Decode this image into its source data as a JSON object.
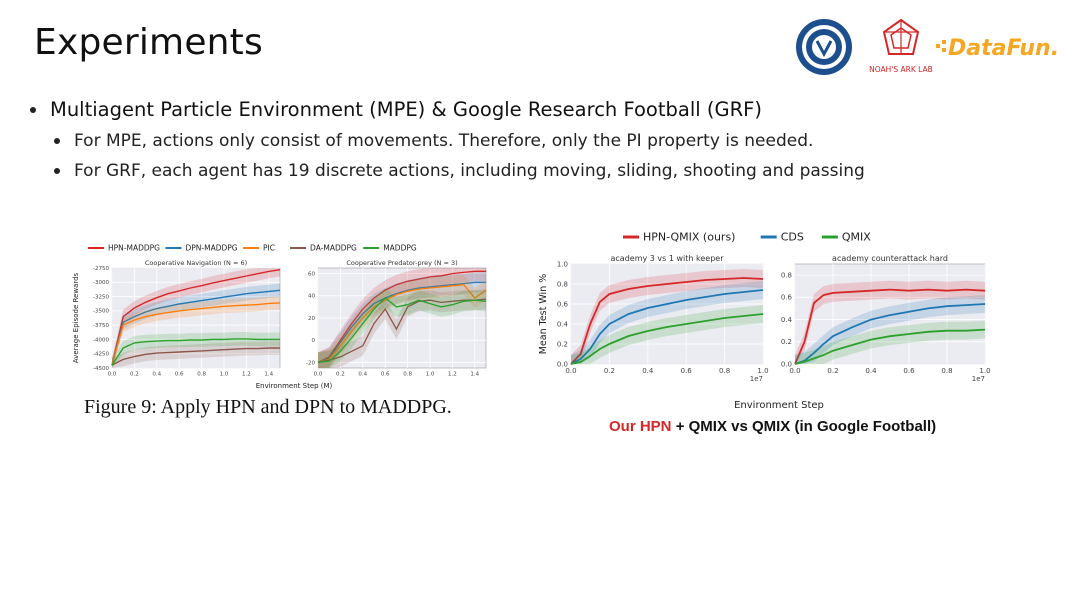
{
  "slide": {
    "title": "Experiments",
    "bullets": [
      "Multiagent Particle Environment (MPE) & Google Research Football (GRF)"
    ],
    "sub_bullets": [
      "For MPE, actions only consist of movements. Therefore, only the PI property is needed.",
      "For GRF, each agent has 19 discrete actions, including moving, sliding, shooting and passing"
    ],
    "figure9_caption": "Figure 9: Apply HPN and DPN to MADDPG.",
    "football_caption_red": "Our HPN",
    "football_caption_rest": "+ QMIX vs QMIX (in Google Football)"
  },
  "logos": {
    "lab_label": "NOAH'S ARK LAB",
    "datafun": "DataFun."
  },
  "colors": {
    "red": "#d62728",
    "blue": "#1f77b4",
    "orange": "#ff7f0e",
    "brown": "#8c564b",
    "green": "#2ca02c",
    "datafun_orange": "#f5a623"
  },
  "chart_data": [
    {
      "type": "line",
      "title": "Cooperative Navigation (N = 6)",
      "xlabel": "Environment Step (M)",
      "ylabel": "Average Episode Rewards",
      "xlim": [
        0,
        1.5
      ],
      "ylim": [
        -4500,
        -2750
      ],
      "x_ticks": [
        "0.0",
        "0.2",
        "0.4",
        "0.6",
        "0.8",
        "1.0",
        "1.2",
        "1.4"
      ],
      "y_ticks": [
        "-2750",
        "-3000",
        "-3250",
        "-3500",
        "-3750",
        "-4000",
        "-4250",
        "-4500"
      ],
      "legend": [
        "HPN-MADDPG",
        "DPN-MADDPG",
        "PIC",
        "DA-MADDPG",
        "MADDPG"
      ],
      "x": [
        0,
        0.1,
        0.2,
        0.3,
        0.4,
        0.5,
        0.6,
        0.7,
        0.8,
        0.9,
        1.0,
        1.1,
        1.2,
        1.3,
        1.4,
        1.5
      ],
      "series": [
        {
          "name": "HPN-MADDPG",
          "values": [
            -4450,
            -3600,
            -3450,
            -3350,
            -3270,
            -3200,
            -3150,
            -3100,
            -3060,
            -3010,
            -2970,
            -2930,
            -2890,
            -2850,
            -2810,
            -2780
          ]
        },
        {
          "name": "DPN-MADDPG",
          "values": [
            -4450,
            -3700,
            -3600,
            -3520,
            -3460,
            -3420,
            -3380,
            -3350,
            -3320,
            -3290,
            -3260,
            -3230,
            -3200,
            -3180,
            -3160,
            -3140
          ]
        },
        {
          "name": "PIC",
          "values": [
            -4450,
            -3750,
            -3660,
            -3600,
            -3560,
            -3530,
            -3500,
            -3480,
            -3460,
            -3440,
            -3420,
            -3410,
            -3400,
            -3390,
            -3370,
            -3360
          ]
        },
        {
          "name": "DA-MADDPG",
          "values": [
            -4450,
            -4350,
            -4300,
            -4260,
            -4240,
            -4230,
            -4220,
            -4210,
            -4200,
            -4190,
            -4180,
            -4170,
            -4160,
            -4160,
            -4150,
            -4150
          ]
        },
        {
          "name": "MADDPG",
          "values": [
            -4450,
            -4150,
            -4060,
            -4040,
            -4030,
            -4020,
            -4020,
            -4010,
            -4010,
            -4000,
            -4000,
            -3990,
            -3990,
            -4000,
            -4000,
            -4000
          ]
        }
      ]
    },
    {
      "type": "line",
      "title": "Cooperative Predator-prey (N = 3)",
      "xlabel": "Environment Step (M)",
      "xlim": [
        0,
        1.5
      ],
      "ylim": [
        -25,
        65
      ],
      "x_ticks": [
        "0.0",
        "0.2",
        "0.4",
        "0.6",
        "0.8",
        "1.0",
        "1.2",
        "1.4"
      ],
      "y_ticks": [
        "60",
        "40",
        "20",
        "0",
        "-20"
      ],
      "x": [
        0,
        0.1,
        0.2,
        0.3,
        0.4,
        0.5,
        0.6,
        0.7,
        0.8,
        0.9,
        1.0,
        1.1,
        1.2,
        1.3,
        1.4,
        1.5
      ],
      "series": [
        {
          "name": "HPN-MADDPG",
          "values": [
            -20,
            -15,
            0,
            15,
            28,
            38,
            45,
            50,
            53,
            55,
            57,
            58,
            60,
            61,
            62,
            62
          ]
        },
        {
          "name": "DPN-MADDPG",
          "values": [
            -20,
            -16,
            -2,
            12,
            24,
            33,
            38,
            42,
            45,
            47,
            48,
            49,
            50,
            51,
            52,
            52
          ]
        },
        {
          "name": "PIC",
          "values": [
            -20,
            -17,
            -5,
            8,
            20,
            30,
            36,
            41,
            44,
            46,
            47,
            48,
            49,
            50,
            38,
            45
          ]
        },
        {
          "name": "DA-MADDPG",
          "values": [
            -20,
            -18,
            -15,
            -10,
            -5,
            15,
            28,
            10,
            30,
            35,
            36,
            34,
            35,
            36,
            36,
            37
          ]
        },
        {
          "name": "MADDPG",
          "values": [
            -20,
            -19,
            -10,
            2,
            15,
            28,
            38,
            30,
            32,
            36,
            33,
            30,
            32,
            35,
            36,
            35
          ]
        }
      ]
    },
    {
      "type": "line",
      "title": "academy 3 vs 1 with keeper",
      "ylabel": "Mean Test Win %",
      "xlim": [
        0,
        1.0
      ],
      "ylim": [
        0,
        1.0
      ],
      "x_ticks": [
        "0.0",
        "0.2",
        "0.4",
        "0.6",
        "0.8",
        "1.0"
      ],
      "y_ticks": [
        "0.0",
        "0.2",
        "0.4",
        "0.6",
        "0.8",
        "1.0"
      ],
      "x_scale_label": "1e7",
      "legend": [
        "HPN-QMIX (ours)",
        "CDS",
        "QMIX"
      ],
      "x": [
        0,
        0.05,
        0.1,
        0.15,
        0.2,
        0.3,
        0.4,
        0.5,
        0.6,
        0.7,
        0.8,
        0.9,
        1.0
      ],
      "series": [
        {
          "name": "HPN-QMIX (ours)",
          "values": [
            0.0,
            0.1,
            0.4,
            0.62,
            0.7,
            0.75,
            0.78,
            0.8,
            0.82,
            0.84,
            0.85,
            0.86,
            0.85
          ]
        },
        {
          "name": "CDS",
          "values": [
            0.0,
            0.05,
            0.15,
            0.3,
            0.4,
            0.5,
            0.56,
            0.6,
            0.64,
            0.67,
            0.7,
            0.72,
            0.74
          ]
        },
        {
          "name": "QMIX",
          "values": [
            0.0,
            0.02,
            0.08,
            0.15,
            0.2,
            0.28,
            0.33,
            0.37,
            0.4,
            0.43,
            0.46,
            0.48,
            0.5
          ]
        }
      ]
    },
    {
      "type": "line",
      "title": "academy counterattack hard",
      "xlabel": "Environment Step",
      "xlim": [
        0,
        1.0
      ],
      "ylim": [
        0,
        0.9
      ],
      "x_ticks": [
        "0.0",
        "0.2",
        "0.4",
        "0.6",
        "0.8",
        "1.0"
      ],
      "y_ticks": [
        "0.0",
        "0.2",
        "0.4",
        "0.6",
        "0.8"
      ],
      "x_scale_label": "1e7",
      "x": [
        0,
        0.05,
        0.1,
        0.15,
        0.2,
        0.3,
        0.4,
        0.5,
        0.6,
        0.7,
        0.8,
        0.9,
        1.0
      ],
      "series": [
        {
          "name": "HPN-QMIX (ours)",
          "values": [
            0.0,
            0.2,
            0.55,
            0.62,
            0.64,
            0.65,
            0.66,
            0.67,
            0.66,
            0.67,
            0.66,
            0.67,
            0.66
          ]
        },
        {
          "name": "CDS",
          "values": [
            0.0,
            0.03,
            0.1,
            0.18,
            0.25,
            0.33,
            0.4,
            0.44,
            0.47,
            0.5,
            0.52,
            0.53,
            0.54
          ]
        },
        {
          "name": "QMIX",
          "values": [
            0.0,
            0.02,
            0.05,
            0.08,
            0.12,
            0.17,
            0.22,
            0.25,
            0.27,
            0.29,
            0.3,
            0.3,
            0.31
          ]
        }
      ]
    }
  ]
}
